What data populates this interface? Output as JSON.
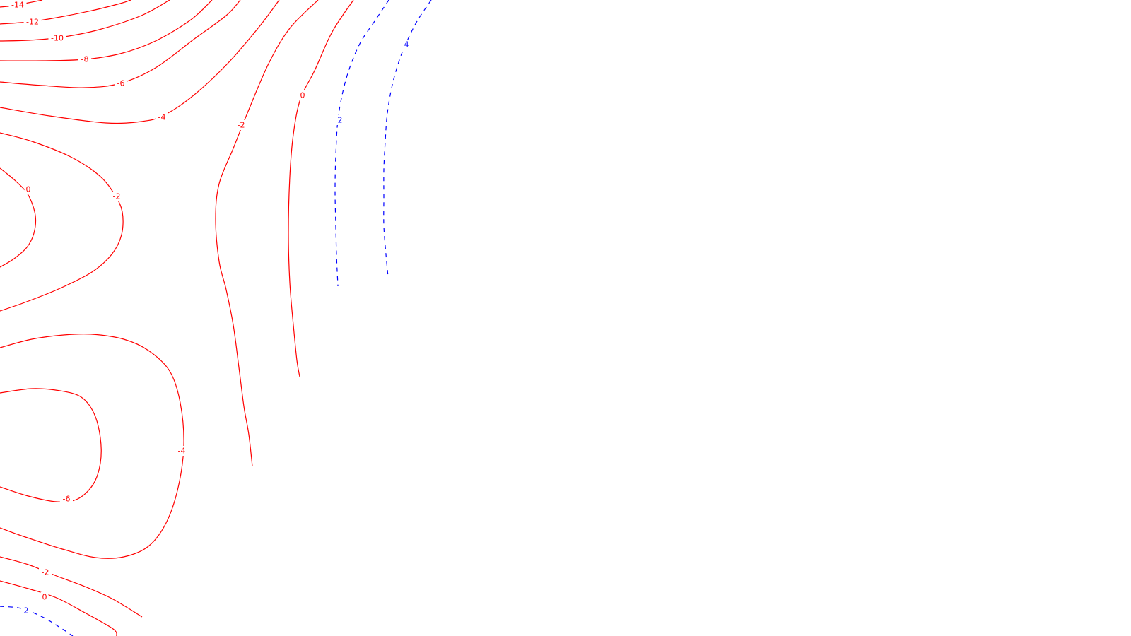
{
  "chart_data": {
    "type": "contour",
    "title": "",
    "xlabel": "",
    "ylabel": "",
    "legend": "none",
    "grid": false,
    "negative_line_style": "solid",
    "positive_line_style": "dashed",
    "colors": {
      "negative": "#ff0000",
      "positive": "#0000ff"
    },
    "levels": [
      -14,
      -12,
      -10,
      -8,
      -6,
      -4,
      -2,
      0,
      2,
      4
    ],
    "contours": [
      {
        "level": -14,
        "label": "-14"
      },
      {
        "level": -12,
        "label": "-12"
      },
      {
        "level": -10,
        "label": "-10"
      },
      {
        "level": -8,
        "label": "-8"
      },
      {
        "level": -6,
        "label": "-6"
      },
      {
        "level": -4,
        "label": "-4"
      },
      {
        "level": -2,
        "label": "-2"
      },
      {
        "level": 0,
        "label": "0"
      },
      {
        "level": 2,
        "label": "2"
      },
      {
        "level": 4,
        "label": "4"
      },
      {
        "level": 0,
        "label": "0"
      },
      {
        "level": -2,
        "label": "-2"
      },
      {
        "level": -4,
        "label": "-4"
      },
      {
        "level": -6,
        "label": "-6"
      },
      {
        "level": -2,
        "label": "-2"
      },
      {
        "level": 0,
        "label": "0"
      },
      {
        "level": 2,
        "label": "2"
      }
    ]
  }
}
